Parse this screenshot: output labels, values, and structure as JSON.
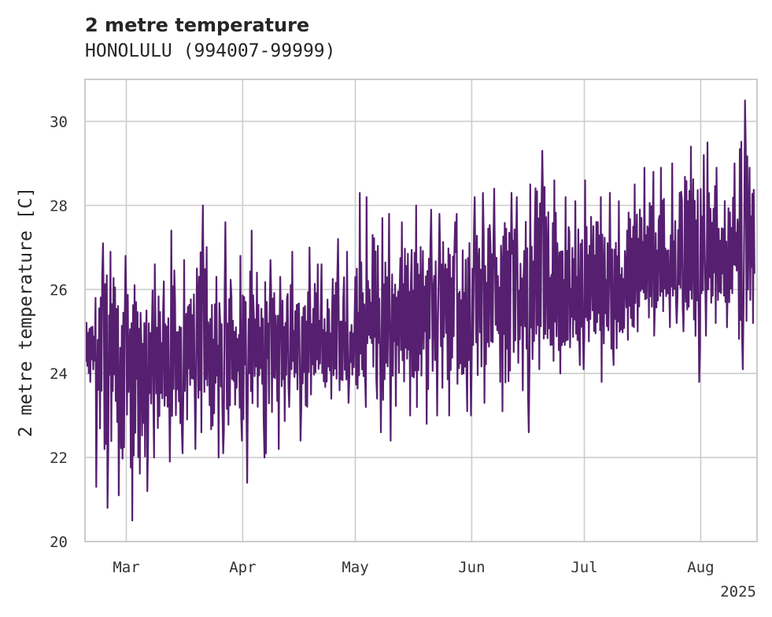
{
  "chart_data": {
    "type": "line",
    "title": "2 metre temperature",
    "subtitle": "HONOLULU (994007-99999)",
    "xlabel": "",
    "ylabel": "2 metre temperature [C]",
    "xlim": [
      "2025-02-18",
      "2025-08-16"
    ],
    "ylim": [
      20,
      31
    ],
    "grid": true,
    "line_color": "#561f70",
    "x_ticks": [
      {
        "date": "2025-03-01",
        "label": "Mar"
      },
      {
        "date": "2025-04-01",
        "label": "Apr"
      },
      {
        "date": "2025-05-01",
        "label": "May"
      },
      {
        "date": "2025-06-01",
        "label": "Jun"
      },
      {
        "date": "2025-07-01",
        "label": "Jul"
      },
      {
        "date": "2025-08-01",
        "label": "Aug"
      }
    ],
    "x_offset_label": "2025",
    "y_ticks": [
      20,
      22,
      24,
      26,
      28,
      30
    ],
    "series": [
      {
        "x": [
          "2025-02-18",
          "2025-02-21",
          "2025-02-24",
          "2025-02-27",
          "2025-03-02",
          "2025-03-05",
          "2025-03-08",
          "2025-03-11",
          "2025-03-14",
          "2025-03-17",
          "2025-03-20",
          "2025-03-23",
          "2025-03-26",
          "2025-03-29",
          "2025-04-01",
          "2025-04-04",
          "2025-04-07",
          "2025-04-10",
          "2025-04-13",
          "2025-04-16",
          "2025-04-19",
          "2025-04-22",
          "2025-04-25",
          "2025-04-28",
          "2025-05-01",
          "2025-05-04",
          "2025-05-07",
          "2025-05-10",
          "2025-05-13",
          "2025-05-16",
          "2025-05-19",
          "2025-05-22",
          "2025-05-25",
          "2025-05-28",
          "2025-05-31",
          "2025-06-03",
          "2025-06-06",
          "2025-06-09",
          "2025-06-12",
          "2025-06-15",
          "2025-06-18",
          "2025-06-21",
          "2025-06-24",
          "2025-06-27",
          "2025-06-30",
          "2025-07-03",
          "2025-07-06",
          "2025-07-09",
          "2025-07-12",
          "2025-07-15",
          "2025-07-18",
          "2025-07-21",
          "2025-07-24",
          "2025-07-27",
          "2025-07-30",
          "2025-08-02",
          "2025-08-05",
          "2025-08-08",
          "2025-08-11",
          "2025-08-14"
        ],
        "y": [
          24.6,
          24.3,
          24.8,
          24.0,
          24.8,
          24.4,
          24.2,
          24.3,
          24.1,
          24.5,
          24.6,
          24.3,
          24.2,
          24.4,
          24.9,
          24.6,
          24.8,
          24.4,
          24.5,
          24.7,
          24.8,
          24.4,
          24.3,
          24.6,
          24.7,
          25.2,
          25.3,
          25.4,
          25.5,
          25.3,
          25.4,
          25.6,
          25.5,
          25.2,
          25.4,
          25.6,
          25.4,
          25.6,
          25.5,
          25.8,
          25.9,
          25.6,
          25.8,
          25.6,
          26.1,
          25.9,
          25.7,
          25.8,
          26.0,
          26.2,
          26.3,
          26.4,
          26.5,
          26.6,
          26.9,
          26.7,
          26.8,
          26.9,
          26.6,
          26.8
        ],
        "min": [
          23.8,
          21.3,
          20.8,
          21.1,
          20.5,
          21.2,
          22.0,
          21.9,
          22.1,
          22.2,
          22.6,
          22.0,
          22.1,
          22.4,
          21.4,
          22.0,
          22.1,
          22.2,
          23.2,
          22.4,
          23.5,
          23.4,
          23.6,
          23.3,
          23.2,
          23.4,
          22.6,
          22.4,
          23.0,
          23.2,
          22.8,
          23.0,
          23.0,
          23.1,
          23.0,
          23.3,
          23.8,
          23.1,
          23.6,
          22.6,
          24.1,
          24.3,
          24.0,
          24.2,
          24.1,
          23.8,
          24.2,
          24.6,
          24.8,
          25.0,
          24.9,
          25.1,
          25.2,
          25.0,
          23.8,
          24.9,
          25.2,
          25.1,
          24.1,
          25.2
        ],
        "max": [
          25.8,
          27.1,
          26.9,
          26.8,
          26.1,
          25.5,
          26.6,
          27.4,
          26.7,
          26.5,
          28.0,
          26.3,
          27.6,
          26.8,
          27.4,
          26.4,
          26.7,
          26.3,
          26.9,
          27.0,
          26.6,
          26.6,
          27.2,
          26.9,
          28.3,
          28.2,
          27.7,
          27.8,
          27.6,
          28.0,
          27.9,
          27.8,
          27.6,
          27.8,
          28.2,
          28.3,
          28.4,
          28.3,
          28.2,
          28.5,
          29.3,
          28.6,
          28.2,
          28.1,
          28.6,
          28.2,
          28.3,
          28.1,
          28.5,
          28.9,
          28.8,
          28.9,
          29.0,
          29.4,
          29.2,
          29.5,
          28.9,
          29.0,
          30.5,
          28.9
        ]
      }
    ]
  }
}
